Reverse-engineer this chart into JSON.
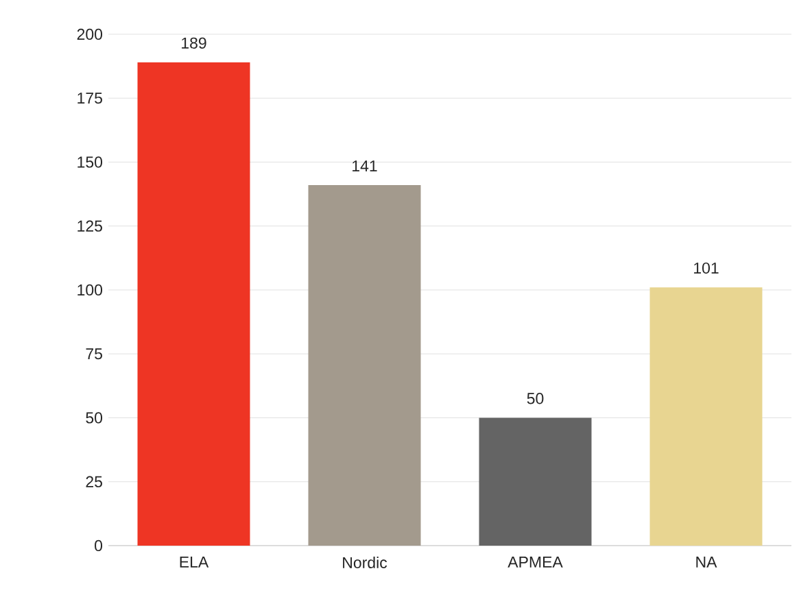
{
  "chart_data": {
    "type": "bar",
    "categories": [
      "ELA",
      "Nordic",
      "APMEA",
      "NA"
    ],
    "values": [
      189,
      141,
      50,
      101
    ],
    "colors": [
      "#ee3524",
      "#a39a8d",
      "#646464",
      "#e8d591"
    ],
    "ylim": [
      0,
      200
    ],
    "yticks": [
      0,
      25,
      50,
      75,
      100,
      125,
      150,
      175,
      200
    ],
    "grid": "y",
    "data_labels": true
  }
}
